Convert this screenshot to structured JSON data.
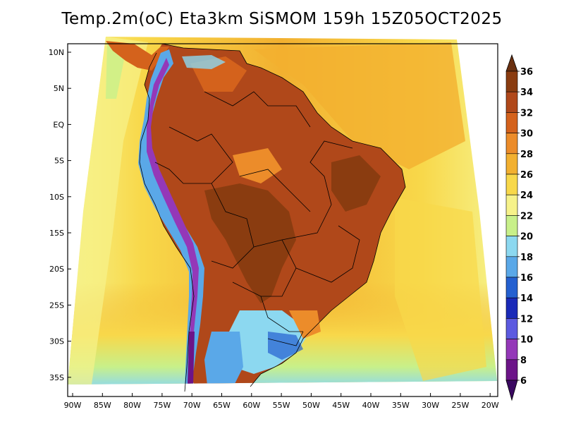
{
  "title": "Temp.2m(oC) Eta3km SiSMOM 159h 15Z05OCT2025",
  "map": {
    "lat_axis_labels": [
      "10N",
      "5N",
      "EQ",
      "5S",
      "10S",
      "15S",
      "20S",
      "25S",
      "30S",
      "35S"
    ],
    "lon_axis_labels": [
      "90W",
      "85W",
      "80W",
      "75W",
      "70W",
      "65W",
      "60W",
      "55W",
      "50W",
      "45W",
      "40W",
      "35W",
      "30W",
      "25W",
      "20W"
    ]
  },
  "colorbar": {
    "labels": [
      "36",
      "34",
      "32",
      "30",
      "28",
      "26",
      "24",
      "22",
      "20",
      "18",
      "16",
      "14",
      "12",
      "10",
      "8",
      "6"
    ],
    "colors": [
      "#6b3010",
      "#8a3c10",
      "#b0481a",
      "#d4621c",
      "#ec8c2a",
      "#f2b030",
      "#f8d84a",
      "#f6f28a",
      "#c8f08a",
      "#8cd8f0",
      "#5aa8e8",
      "#2460d0",
      "#1a2ab8",
      "#5c5ae0",
      "#9438b8",
      "#6c1488",
      "#3a0860"
    ],
    "unit": "oC"
  },
  "legend_colors": {
    "ocean_warm": "#f2b030",
    "ocean_mild": "#f8d84a",
    "ocean_cool": "#f6f28a",
    "land_hot": "#b0481a",
    "land_very_hot": "#8a3c10",
    "andes_cold": "#2460d0",
    "andes_coldest": "#9438b8"
  }
}
